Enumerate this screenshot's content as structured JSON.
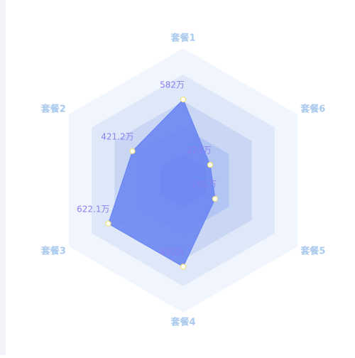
{
  "chart_data": {
    "type": "radar",
    "categories": [
      "套餐1",
      "套餐2",
      "套餐3",
      "套餐4",
      "套餐5",
      "套餐6"
    ],
    "values": [
      582,
      421.2,
      622.1,
      620,
      265,
      224
    ],
    "value_labels": [
      "582万",
      "421.2万",
      "622.1万",
      "620万",
      "265万",
      "224万"
    ],
    "rlim": [
      0,
      950
    ],
    "color": "#6682f2",
    "ring_colors": [
      "#f1f5fd",
      "#dfe8f8",
      "#c9d7f5",
      "#b3c6f3",
      "#9fb6f1"
    ]
  }
}
